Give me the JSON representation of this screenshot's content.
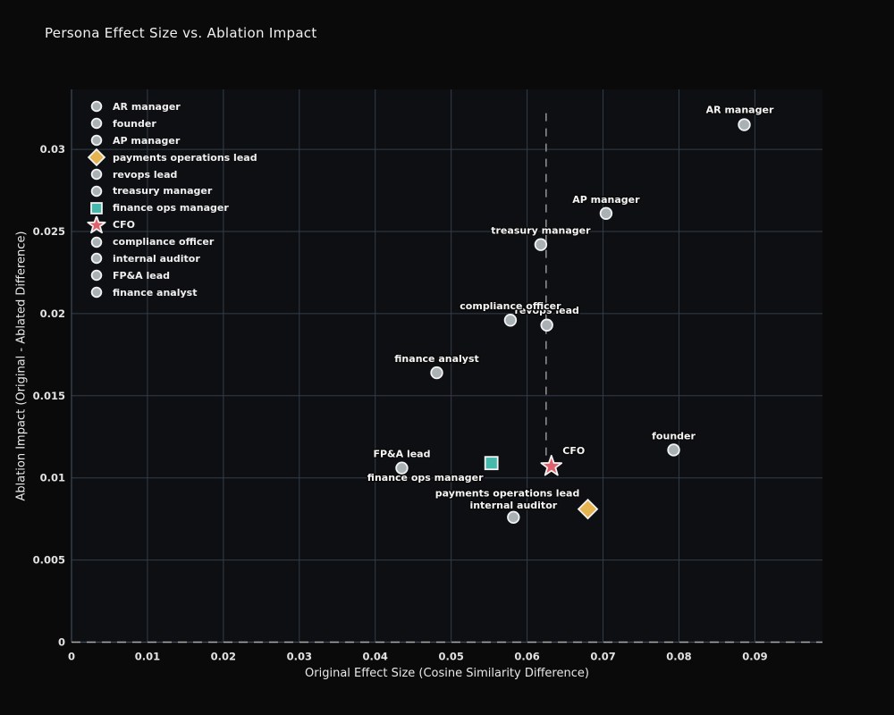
{
  "chart_data": {
    "type": "scatter",
    "title": "Persona Effect Size vs. Ablation Impact",
    "xlabel": "Original Effect Size (Cosine Similarity Difference)",
    "ylabel": "Ablation Impact (Original - Ablated Difference)",
    "xlim": [
      0,
      0.0989
    ],
    "ylim": [
      0,
      0.03365
    ],
    "x_ticks": [
      0,
      0.01,
      0.02,
      0.03,
      0.04,
      0.05,
      0.06,
      0.07,
      0.08,
      0.09
    ],
    "y_ticks": [
      0,
      0.005,
      0.01,
      0.015,
      0.02,
      0.025,
      0.03
    ],
    "grid": true,
    "legend_position": "upper left",
    "series": [
      {
        "name": "AR manager",
        "x": 0.0886,
        "y": 0.0315,
        "marker": "circle",
        "color": "#a9b1b5",
        "label_offset": [
          -5,
          -17
        ]
      },
      {
        "name": "founder",
        "x": 0.0793,
        "y": 0.0117,
        "marker": "circle",
        "color": "#a9b1b5",
        "label_offset": [
          0,
          -16
        ]
      },
      {
        "name": "AP manager",
        "x": 0.0704,
        "y": 0.0261,
        "marker": "circle",
        "color": "#a9b1b5",
        "label_offset": [
          0,
          -16
        ]
      },
      {
        "name": "payments operations lead",
        "x": 0.068,
        "y": 0.0081,
        "marker": "diamond",
        "color": "#e6b44e",
        "label_offset": [
          -90,
          -18
        ]
      },
      {
        "name": "revops lead",
        "x": 0.0626,
        "y": 0.0193,
        "marker": "circle",
        "color": "#a9b1b5",
        "label_offset": [
          0,
          -17
        ]
      },
      {
        "name": "treasury manager",
        "x": 0.0618,
        "y": 0.0242,
        "marker": "circle",
        "color": "#a9b1b5",
        "label_offset": [
          0,
          -16
        ]
      },
      {
        "name": "finance ops manager",
        "x": 0.0553,
        "y": 0.0109,
        "marker": "square",
        "color": "#47b8ac",
        "label_offset": [
          -74,
          16
        ]
      },
      {
        "name": "CFO",
        "x": 0.0632,
        "y": 0.0107,
        "marker": "star",
        "color": "#e0616b",
        "label_offset": [
          25,
          -18
        ]
      },
      {
        "name": "compliance officer",
        "x": 0.0578,
        "y": 0.0196,
        "marker": "circle",
        "color": "#a9b1b5",
        "label_offset": [
          0,
          -16
        ]
      },
      {
        "name": "internal auditor",
        "x": 0.0582,
        "y": 0.0076,
        "marker": "circle",
        "color": "#a9b1b5",
        "label_offset": [
          0,
          -14
        ]
      },
      {
        "name": "FP&A lead",
        "x": 0.0435,
        "y": 0.0106,
        "marker": "circle",
        "color": "#a9b1b5",
        "label_offset": [
          0,
          -16
        ]
      },
      {
        "name": "finance analyst",
        "x": 0.0481,
        "y": 0.0164,
        "marker": "circle",
        "color": "#a9b1b5",
        "label_offset": [
          0,
          -16
        ]
      }
    ],
    "reference_lines": {
      "vline": {
        "x": 0.0625,
        "y_from": 0.0107,
        "y_to": 0.0322,
        "style": "dashed",
        "color": "#8d8d8d"
      },
      "hline": {
        "y": 0,
        "style": "dashed",
        "color": "#a8a8a8"
      }
    },
    "colors": {
      "figure_bg": "#0a0a0b",
      "plot_bg": "#0e0f12",
      "grid": "#323d4a",
      "spine": "#3e4a58",
      "text": "#e8e8e8",
      "marker_stroke": "#f2f2f2"
    }
  }
}
